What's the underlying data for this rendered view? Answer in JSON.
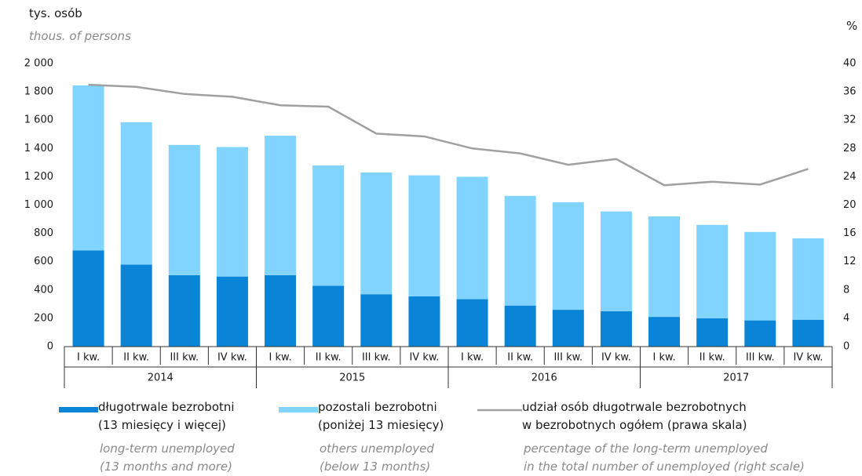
{
  "chart_data": {
    "type": "bar",
    "stacked": true,
    "y_label": "tys. osób",
    "y_label_en": "thous. of persons",
    "y2_label": "%",
    "categories": [
      "I kw.",
      "II kw.",
      "III kw.",
      "IV kw.",
      "I kw.",
      "II kw.",
      "III kw.",
      "IV kw.",
      "I kw.",
      "II kw.",
      "III kw.",
      "IV kw.",
      "I kw.",
      "II kw.",
      "III kw.",
      "IV kw."
    ],
    "category_groups": [
      "2014",
      "2015",
      "2016",
      "2017"
    ],
    "series": [
      {
        "name": "długotrwale bezrobotni\n(13 miesięcy i więcej)",
        "name_en": "long-term unemployed\n(13 months and more)",
        "color": "#0a84d6",
        "values": [
          680,
          580,
          505,
          495,
          505,
          430,
          370,
          355,
          335,
          290,
          260,
          250,
          210,
          200,
          185,
          190
        ]
      },
      {
        "name": "pozostali bezrobotni\n(poniżej 13 miesięcy)",
        "name_en": "others unemployed\n(below 13 months)",
        "color": "#80d4ff",
        "values": [
          1165,
          1005,
          920,
          915,
          985,
          850,
          860,
          855,
          865,
          775,
          760,
          705,
          710,
          660,
          625,
          575
        ]
      },
      {
        "name": "udział osób długotrwale bezrobotnych\nw bezrobotnych ogółem (prawa skala)",
        "name_en": "percentage of the long-term unemployed\nin the total number of unemployed (right scale)",
        "color": "#a0a0a0",
        "type": "line",
        "axis": "y2",
        "values": [
          37.0,
          36.7,
          35.7,
          35.3,
          34.1,
          33.9,
          30.1,
          29.7,
          28.0,
          27.3,
          25.7,
          26.5,
          22.8,
          23.3,
          22.9,
          25.1
        ]
      }
    ],
    "ylim": [
      0,
      2000
    ],
    "yticks": [
      0,
      200,
      400,
      600,
      800,
      {
        "value": 1000,
        "label": "1 000"
      },
      {
        "value": 1200,
        "label": "1 200"
      },
      {
        "value": 1400,
        "label": "1 400"
      },
      {
        "value": 1600,
        "label": "1 600"
      },
      {
        "value": 1800,
        "label": "1 800"
      },
      {
        "value": 2000,
        "label": "2 000"
      }
    ],
    "y2lim": [
      0,
      40
    ],
    "y2ticks": [
      0,
      4,
      8,
      12,
      16,
      20,
      24,
      28,
      32,
      36,
      40
    ],
    "grid": false
  }
}
